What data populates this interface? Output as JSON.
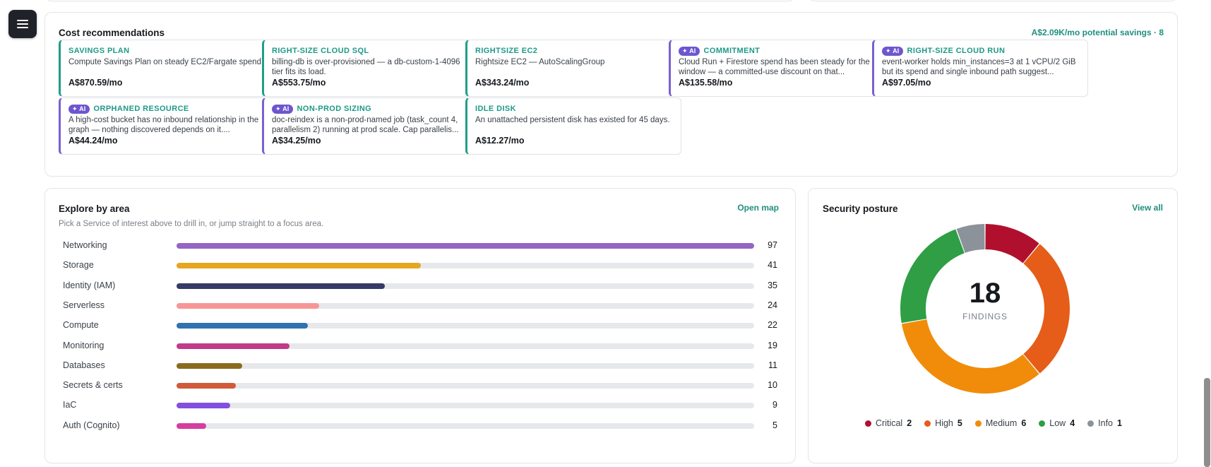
{
  "menu": {
    "icon": "hamburger-menu-icon"
  },
  "cost": {
    "title": "Cost recommendations",
    "potential_savings": "A$2.09K/mo potential savings · 8",
    "ai_badge": "✦ AI",
    "items": [
      {
        "label": "SAVINGS PLAN",
        "ai": false,
        "desc": "Compute Savings Plan on steady EC2/Fargate spend",
        "price": "A$870.59/mo"
      },
      {
        "label": "RIGHT-SIZE CLOUD SQL",
        "ai": false,
        "desc": "billing-db is over-provisioned — a db-custom-1-4096 tier fits its load.",
        "price": "A$553.75/mo"
      },
      {
        "label": "RIGHTSIZE EC2",
        "ai": false,
        "desc": "Rightsize EC2 — AutoScalingGroup",
        "price": "A$343.24/mo"
      },
      {
        "label": "COMMITMENT",
        "ai": true,
        "desc": "Cloud Run + Firestore spend has been steady for the window — a committed-use discount on that...",
        "price": "A$135.58/mo"
      },
      {
        "label": "RIGHT-SIZE CLOUD RUN",
        "ai": true,
        "desc": "event-worker holds min_instances=3 at 1 vCPU/2 GiB but its spend and single inbound path suggest...",
        "price": "A$97.05/mo"
      },
      {
        "label": "ORPHANED RESOURCE",
        "ai": true,
        "desc": "A high-cost bucket has no inbound relationship in the graph — nothing discovered depends on it....",
        "price": "A$44.24/mo"
      },
      {
        "label": "NON-PROD SIZING",
        "ai": true,
        "desc": "doc-reindex is a non-prod-named job (task_count 4, parallelism 2) running at prod scale. Cap parallelis...",
        "price": "A$34.25/mo"
      },
      {
        "label": "IDLE DISK",
        "ai": false,
        "desc": "An unattached persistent disk has existed for 45 days.",
        "price": "A$12.27/mo"
      }
    ]
  },
  "explore": {
    "title": "Explore by area",
    "link": "Open map",
    "subtitle": "Pick a Service of interest above to drill in, or jump straight to a focus area.",
    "max": 97,
    "areas": [
      {
        "label": "Networking",
        "value": 97,
        "color": "#9565c4"
      },
      {
        "label": "Storage",
        "value": 41,
        "color": "#e5a620"
      },
      {
        "label": "Identity (IAM)",
        "value": 35,
        "color": "#353a66"
      },
      {
        "label": "Serverless",
        "value": 24,
        "color": "#f79696"
      },
      {
        "label": "Compute",
        "value": 22,
        "color": "#2f73b0"
      },
      {
        "label": "Monitoring",
        "value": 19,
        "color": "#c03b8a"
      },
      {
        "label": "Databases",
        "value": 11,
        "color": "#8a6a1e"
      },
      {
        "label": "Secrets & certs",
        "value": 10,
        "color": "#d05a3a"
      },
      {
        "label": "IaC",
        "value": 9,
        "color": "#8250df"
      },
      {
        "label": "Auth (Cognito)",
        "value": 5,
        "color": "#d63da0"
      }
    ]
  },
  "security": {
    "title": "Security posture",
    "link": "View all",
    "total": "18",
    "caption": "FINDINGS",
    "segments": [
      {
        "label": "Critical",
        "count": 2,
        "color": "#b0102e"
      },
      {
        "label": "High",
        "count": 5,
        "color": "#e55d18"
      },
      {
        "label": "Medium",
        "count": 6,
        "color": "#f08c0a"
      },
      {
        "label": "Low",
        "count": 4,
        "color": "#2f9e44"
      },
      {
        "label": "Info",
        "count": 1,
        "color": "#8c9299"
      }
    ]
  }
}
